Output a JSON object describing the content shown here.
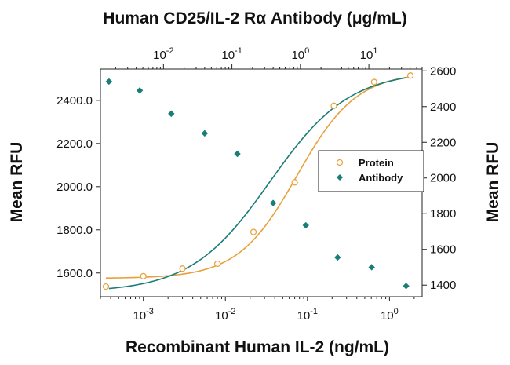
{
  "chart_data": {
    "type": "scatter",
    "title": "Human CD25/IL-2 Rα Antibody (μg/mL)",
    "xlabel": "Recombinant Human IL-2 (ng/mL)",
    "ylabel_left": "Mean RFU",
    "ylabel_right": "Mean RFU",
    "x_bottom": {
      "scale": "log",
      "range": [
        0.0003,
        2.5
      ],
      "ticks": [
        {
          "base": "10",
          "exp": "-3",
          "value": 0.001
        },
        {
          "base": "10",
          "exp": "-2",
          "value": 0.01
        },
        {
          "base": "10",
          "exp": "-1",
          "value": 0.1
        },
        {
          "base": "10",
          "exp": "0",
          "value": 1
        }
      ]
    },
    "x_top": {
      "scale": "log",
      "range": [
        0.0012,
        60
      ],
      "ticks": [
        {
          "base": "10",
          "exp": "-2",
          "value": 0.01
        },
        {
          "base": "10",
          "exp": "-1",
          "value": 0.1
        },
        {
          "base": "10",
          "exp": "0",
          "value": 1
        },
        {
          "base": "10",
          "exp": "1",
          "value": 10
        }
      ]
    },
    "y_left": {
      "range": [
        1490,
        2545
      ],
      "ticks": [
        {
          "label": "1600.0",
          "value": 1600
        },
        {
          "label": "1800.0",
          "value": 1800
        },
        {
          "label": "2000.0",
          "value": 2000
        },
        {
          "label": "2200.0",
          "value": 2200
        },
        {
          "label": "2400.0",
          "value": 2400
        }
      ]
    },
    "y_right": {
      "range": [
        1335,
        2610
      ],
      "ticks": [
        {
          "label": "1400",
          "value": 1400
        },
        {
          "label": "1600",
          "value": 1600
        },
        {
          "label": "1800",
          "value": 1800
        },
        {
          "label": "2000",
          "value": 2000
        },
        {
          "label": "2200",
          "value": 2200
        },
        {
          "label": "2400",
          "value": 2400
        },
        {
          "label": "2600",
          "value": 2600
        }
      ]
    },
    "legend": {
      "placement": "right",
      "items": [
        {
          "name": "Protein",
          "marker": "open-circle",
          "color": "#E8A03A"
        },
        {
          "name": "Antibody",
          "marker": "filled-diamond",
          "color": "#1A7D78"
        }
      ]
    },
    "series": [
      {
        "name": "Protein",
        "axis_x": "bottom",
        "axis_y": "left",
        "color": "#E8A03A",
        "marker": "open-circle",
        "points": [
          {
            "x": 0.00035,
            "y": 1537
          },
          {
            "x": 0.001,
            "y": 1585
          },
          {
            "x": 0.003,
            "y": 1620
          },
          {
            "x": 0.008,
            "y": 1643
          },
          {
            "x": 0.022,
            "y": 1790
          },
          {
            "x": 0.07,
            "y": 2020
          },
          {
            "x": 0.21,
            "y": 2375
          },
          {
            "x": 0.65,
            "y": 2485
          },
          {
            "x": 1.8,
            "y": 2515
          }
        ],
        "curve": {
          "bottom": 1575,
          "top": 2530,
          "ec50": 0.075,
          "hill": 1.2
        }
      },
      {
        "name": "Antibody",
        "axis_x": "top",
        "axis_y": "right",
        "color": "#1A7D78",
        "marker": "filled-diamond",
        "points": [
          {
            "x": 0.0016,
            "y": 2540
          },
          {
            "x": 0.0045,
            "y": 2490
          },
          {
            "x": 0.013,
            "y": 2360
          },
          {
            "x": 0.04,
            "y": 2250
          },
          {
            "x": 0.12,
            "y": 2135
          },
          {
            "x": 0.4,
            "y": 1860
          },
          {
            "x": 1.2,
            "y": 1735
          },
          {
            "x": 3.5,
            "y": 1555
          },
          {
            "x": 11,
            "y": 1500
          },
          {
            "x": 35,
            "y": 1395
          }
        ],
        "curve": {
          "bottom": 1360,
          "top": 2600,
          "ec50": 0.36,
          "hill": 0.75
        }
      }
    ]
  }
}
